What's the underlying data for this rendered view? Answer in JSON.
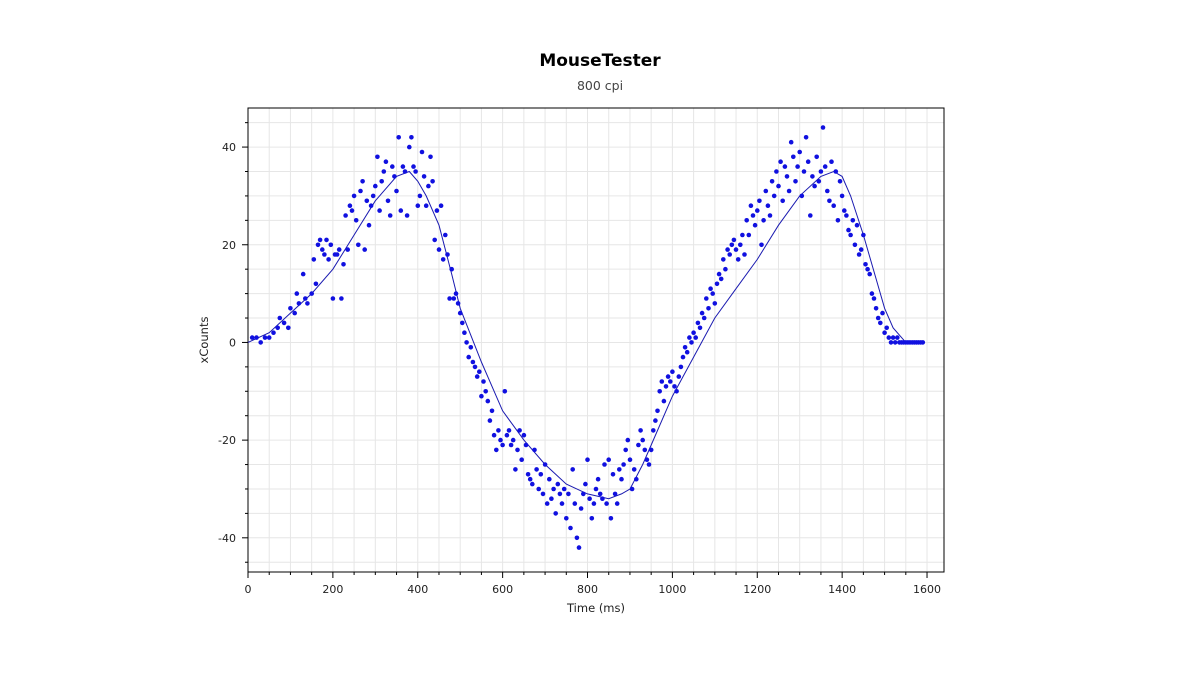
{
  "chart_data": {
    "type": "scatter",
    "title": "MouseTester",
    "subtitle": "800 cpi",
    "xlabel": "Time (ms)",
    "ylabel": "xCounts",
    "xlim": [
      0,
      1640
    ],
    "ylim": [
      -47,
      48
    ],
    "xticks": [
      0,
      200,
      400,
      600,
      800,
      1000,
      1200,
      1400,
      1600
    ],
    "yticks": [
      -40,
      -20,
      0,
      20,
      40
    ],
    "grid": true,
    "legend": "none",
    "colors": {
      "points": "#1010e0",
      "line": "#1a1ab0",
      "grid": "#e6e6e6",
      "axis": "#000000"
    },
    "series": [
      {
        "type": "line",
        "x": [
          0,
          50,
          100,
          150,
          200,
          250,
          300,
          350,
          380,
          400,
          420,
          450,
          480,
          500,
          550,
          600,
          650,
          700,
          750,
          800,
          850,
          880,
          900,
          930,
          950,
          1000,
          1050,
          1100,
          1150,
          1200,
          1250,
          1300,
          1350,
          1380,
          1400,
          1420,
          1450,
          1480,
          1500,
          1520,
          1550,
          1580
        ],
        "y": [
          0,
          2,
          6,
          10,
          15,
          22,
          29,
          34,
          35,
          33,
          30,
          24,
          14,
          7,
          -4,
          -14,
          -20,
          -25,
          -29,
          -31,
          -32,
          -31,
          -30,
          -25,
          -21,
          -11,
          -3,
          5,
          11,
          17,
          24,
          30,
          34,
          35,
          34,
          30,
          22,
          13,
          7,
          3,
          0,
          0
        ]
      },
      {
        "type": "scatter",
        "points": [
          [
            10,
            1
          ],
          [
            20,
            1
          ],
          [
            30,
            0
          ],
          [
            40,
            1
          ],
          [
            50,
            1
          ],
          [
            60,
            2
          ],
          [
            70,
            3
          ],
          [
            75,
            5
          ],
          [
            85,
            4
          ],
          [
            95,
            3
          ],
          [
            100,
            7
          ],
          [
            110,
            6
          ],
          [
            115,
            10
          ],
          [
            120,
            8
          ],
          [
            130,
            14
          ],
          [
            135,
            9
          ],
          [
            140,
            8
          ],
          [
            150,
            10
          ],
          [
            155,
            17
          ],
          [
            160,
            12
          ],
          [
            165,
            20
          ],
          [
            170,
            21
          ],
          [
            175,
            19
          ],
          [
            180,
            18
          ],
          [
            185,
            21
          ],
          [
            190,
            17
          ],
          [
            195,
            20
          ],
          [
            200,
            9
          ],
          [
            205,
            18
          ],
          [
            210,
            18
          ],
          [
            215,
            19
          ],
          [
            220,
            9
          ],
          [
            225,
            16
          ],
          [
            230,
            26
          ],
          [
            235,
            19
          ],
          [
            240,
            28
          ],
          [
            245,
            27
          ],
          [
            250,
            30
          ],
          [
            255,
            25
          ],
          [
            260,
            20
          ],
          [
            265,
            31
          ],
          [
            270,
            33
          ],
          [
            275,
            19
          ],
          [
            280,
            29
          ],
          [
            285,
            24
          ],
          [
            290,
            28
          ],
          [
            295,
            30
          ],
          [
            300,
            32
          ],
          [
            305,
            38
          ],
          [
            310,
            27
          ],
          [
            315,
            33
          ],
          [
            320,
            35
          ],
          [
            325,
            37
          ],
          [
            330,
            29
          ],
          [
            335,
            26
          ],
          [
            340,
            36
          ],
          [
            345,
            34
          ],
          [
            350,
            31
          ],
          [
            355,
            42
          ],
          [
            360,
            27
          ],
          [
            365,
            36
          ],
          [
            370,
            35
          ],
          [
            375,
            26
          ],
          [
            380,
            40
          ],
          [
            385,
            42
          ],
          [
            390,
            36
          ],
          [
            395,
            35
          ],
          [
            400,
            28
          ],
          [
            405,
            30
          ],
          [
            410,
            39
          ],
          [
            415,
            34
          ],
          [
            420,
            28
          ],
          [
            425,
            32
          ],
          [
            430,
            38
          ],
          [
            435,
            33
          ],
          [
            440,
            21
          ],
          [
            445,
            27
          ],
          [
            450,
            19
          ],
          [
            455,
            28
          ],
          [
            460,
            17
          ],
          [
            465,
            22
          ],
          [
            470,
            18
          ],
          [
            475,
            9
          ],
          [
            480,
            15
          ],
          [
            485,
            9
          ],
          [
            490,
            10
          ],
          [
            495,
            8
          ],
          [
            500,
            6
          ],
          [
            505,
            4
          ],
          [
            510,
            2
          ],
          [
            515,
            0
          ],
          [
            520,
            -3
          ],
          [
            525,
            -1
          ],
          [
            530,
            -4
          ],
          [
            535,
            -5
          ],
          [
            540,
            -7
          ],
          [
            545,
            -6
          ],
          [
            550,
            -11
          ],
          [
            555,
            -8
          ],
          [
            560,
            -10
          ],
          [
            565,
            -12
          ],
          [
            570,
            -16
          ],
          [
            575,
            -14
          ],
          [
            580,
            -19
          ],
          [
            585,
            -22
          ],
          [
            590,
            -18
          ],
          [
            595,
            -20
          ],
          [
            600,
            -21
          ],
          [
            605,
            -10
          ],
          [
            610,
            -19
          ],
          [
            615,
            -18
          ],
          [
            620,
            -21
          ],
          [
            625,
            -20
          ],
          [
            630,
            -26
          ],
          [
            635,
            -22
          ],
          [
            640,
            -18
          ],
          [
            645,
            -24
          ],
          [
            650,
            -19
          ],
          [
            655,
            -21
          ],
          [
            660,
            -27
          ],
          [
            665,
            -28
          ],
          [
            670,
            -29
          ],
          [
            675,
            -22
          ],
          [
            680,
            -26
          ],
          [
            685,
            -30
          ],
          [
            690,
            -27
          ],
          [
            695,
            -31
          ],
          [
            700,
            -25
          ],
          [
            705,
            -33
          ],
          [
            710,
            -28
          ],
          [
            715,
            -32
          ],
          [
            720,
            -30
          ],
          [
            725,
            -35
          ],
          [
            730,
            -29
          ],
          [
            735,
            -31
          ],
          [
            740,
            -33
          ],
          [
            745,
            -30
          ],
          [
            750,
            -36
          ],
          [
            755,
            -31
          ],
          [
            760,
            -38
          ],
          [
            765,
            -26
          ],
          [
            770,
            -33
          ],
          [
            775,
            -40
          ],
          [
            780,
            -42
          ],
          [
            785,
            -34
          ],
          [
            790,
            -31
          ],
          [
            795,
            -29
          ],
          [
            800,
            -24
          ],
          [
            805,
            -32
          ],
          [
            810,
            -36
          ],
          [
            815,
            -33
          ],
          [
            820,
            -30
          ],
          [
            825,
            -28
          ],
          [
            830,
            -31
          ],
          [
            835,
            -32
          ],
          [
            840,
            -25
          ],
          [
            845,
            -33
          ],
          [
            850,
            -24
          ],
          [
            855,
            -36
          ],
          [
            860,
            -27
          ],
          [
            865,
            -31
          ],
          [
            870,
            -33
          ],
          [
            875,
            -26
          ],
          [
            880,
            -28
          ],
          [
            885,
            -25
          ],
          [
            890,
            -22
          ],
          [
            895,
            -20
          ],
          [
            900,
            -24
          ],
          [
            905,
            -30
          ],
          [
            910,
            -26
          ],
          [
            915,
            -28
          ],
          [
            920,
            -21
          ],
          [
            925,
            -18
          ],
          [
            930,
            -20
          ],
          [
            935,
            -22
          ],
          [
            940,
            -24
          ],
          [
            945,
            -25
          ],
          [
            950,
            -22
          ],
          [
            955,
            -18
          ],
          [
            960,
            -16
          ],
          [
            965,
            -14
          ],
          [
            970,
            -10
          ],
          [
            975,
            -8
          ],
          [
            980,
            -12
          ],
          [
            985,
            -9
          ],
          [
            990,
            -7
          ],
          [
            995,
            -8
          ],
          [
            1000,
            -6
          ],
          [
            1005,
            -9
          ],
          [
            1010,
            -10
          ],
          [
            1015,
            -7
          ],
          [
            1020,
            -5
          ],
          [
            1025,
            -3
          ],
          [
            1030,
            -1
          ],
          [
            1035,
            -2
          ],
          [
            1040,
            1
          ],
          [
            1045,
            0
          ],
          [
            1050,
            2
          ],
          [
            1055,
            1
          ],
          [
            1060,
            4
          ],
          [
            1065,
            3
          ],
          [
            1070,
            6
          ],
          [
            1075,
            5
          ],
          [
            1080,
            9
          ],
          [
            1085,
            7
          ],
          [
            1090,
            11
          ],
          [
            1095,
            10
          ],
          [
            1100,
            8
          ],
          [
            1105,
            12
          ],
          [
            1110,
            14
          ],
          [
            1115,
            13
          ],
          [
            1120,
            17
          ],
          [
            1125,
            15
          ],
          [
            1130,
            19
          ],
          [
            1135,
            18
          ],
          [
            1140,
            20
          ],
          [
            1145,
            21
          ],
          [
            1150,
            19
          ],
          [
            1155,
            17
          ],
          [
            1160,
            20
          ],
          [
            1165,
            22
          ],
          [
            1170,
            18
          ],
          [
            1175,
            25
          ],
          [
            1180,
            22
          ],
          [
            1185,
            28
          ],
          [
            1190,
            26
          ],
          [
            1195,
            24
          ],
          [
            1200,
            27
          ],
          [
            1205,
            29
          ],
          [
            1210,
            20
          ],
          [
            1215,
            25
          ],
          [
            1220,
            31
          ],
          [
            1225,
            28
          ],
          [
            1230,
            26
          ],
          [
            1235,
            33
          ],
          [
            1240,
            30
          ],
          [
            1245,
            35
          ],
          [
            1250,
            32
          ],
          [
            1255,
            37
          ],
          [
            1260,
            29
          ],
          [
            1265,
            36
          ],
          [
            1270,
            34
          ],
          [
            1275,
            31
          ],
          [
            1280,
            41
          ],
          [
            1285,
            38
          ],
          [
            1290,
            33
          ],
          [
            1295,
            36
          ],
          [
            1300,
            39
          ],
          [
            1305,
            30
          ],
          [
            1310,
            35
          ],
          [
            1315,
            42
          ],
          [
            1320,
            37
          ],
          [
            1325,
            26
          ],
          [
            1330,
            34
          ],
          [
            1335,
            32
          ],
          [
            1340,
            38
          ],
          [
            1345,
            33
          ],
          [
            1350,
            35
          ],
          [
            1355,
            44
          ],
          [
            1360,
            36
          ],
          [
            1365,
            31
          ],
          [
            1370,
            29
          ],
          [
            1375,
            37
          ],
          [
            1380,
            28
          ],
          [
            1385,
            35
          ],
          [
            1390,
            25
          ],
          [
            1395,
            33
          ],
          [
            1400,
            30
          ],
          [
            1405,
            27
          ],
          [
            1410,
            26
          ],
          [
            1415,
            23
          ],
          [
            1420,
            22
          ],
          [
            1425,
            25
          ],
          [
            1430,
            20
          ],
          [
            1435,
            24
          ],
          [
            1440,
            18
          ],
          [
            1445,
            19
          ],
          [
            1450,
            22
          ],
          [
            1455,
            16
          ],
          [
            1460,
            15
          ],
          [
            1465,
            14
          ],
          [
            1470,
            10
          ],
          [
            1475,
            9
          ],
          [
            1480,
            7
          ],
          [
            1485,
            5
          ],
          [
            1490,
            4
          ],
          [
            1495,
            6
          ],
          [
            1500,
            2
          ],
          [
            1505,
            3
          ],
          [
            1510,
            1
          ],
          [
            1515,
            0
          ],
          [
            1520,
            1
          ],
          [
            1525,
            0
          ],
          [
            1530,
            1
          ],
          [
            1535,
            0
          ],
          [
            1540,
            0
          ],
          [
            1545,
            0
          ],
          [
            1550,
            0
          ],
          [
            1555,
            0
          ],
          [
            1560,
            0
          ],
          [
            1565,
            0
          ],
          [
            1570,
            0
          ],
          [
            1575,
            0
          ],
          [
            1580,
            0
          ],
          [
            1585,
            0
          ],
          [
            1590,
            0
          ]
        ]
      }
    ]
  }
}
